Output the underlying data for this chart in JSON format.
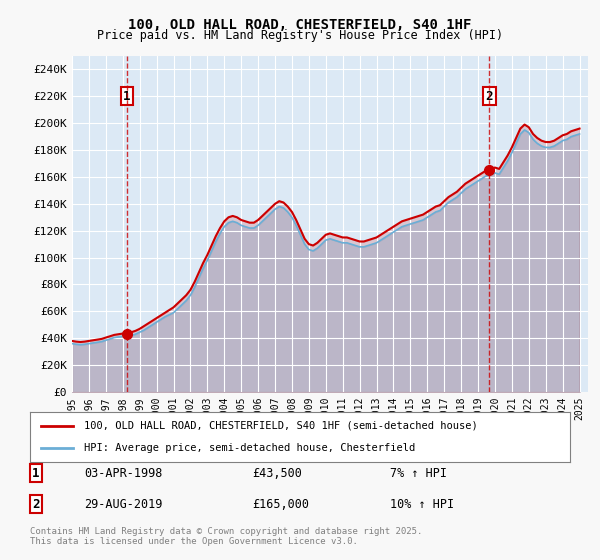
{
  "title_line1": "100, OLD HALL ROAD, CHESTERFIELD, S40 1HF",
  "title_line2": "Price paid vs. HM Land Registry's House Price Index (HPI)",
  "xlabel": "",
  "ylabel": "",
  "ylim": [
    0,
    250000
  ],
  "yticks": [
    0,
    20000,
    40000,
    60000,
    80000,
    100000,
    120000,
    140000,
    160000,
    180000,
    200000,
    220000,
    240000
  ],
  "ytick_labels": [
    "£0",
    "£20K",
    "£40K",
    "£60K",
    "£80K",
    "£100K",
    "£120K",
    "£140K",
    "£160K",
    "£180K",
    "£200K",
    "£220K",
    "£240K"
  ],
  "xlim_start": 1995.0,
  "xlim_end": 2025.5,
  "xticks": [
    1995,
    1996,
    1997,
    1998,
    1999,
    2000,
    2001,
    2002,
    2003,
    2004,
    2005,
    2006,
    2007,
    2008,
    2009,
    2010,
    2011,
    2012,
    2013,
    2014,
    2015,
    2016,
    2017,
    2018,
    2019,
    2020,
    2021,
    2022,
    2023,
    2024,
    2025
  ],
  "bg_color": "#dce9f5",
  "plot_bg_color": "#dce9f5",
  "grid_color": "#ffffff",
  "red_line_color": "#cc0000",
  "blue_line_color": "#6baed6",
  "marker1_year": 1998.25,
  "marker1_price": 43500,
  "marker2_year": 2019.67,
  "marker2_price": 165000,
  "legend_line1": "100, OLD HALL ROAD, CHESTERFIELD, S40 1HF (semi-detached house)",
  "legend_line2": "HPI: Average price, semi-detached house, Chesterfield",
  "annotation1_label": "1",
  "annotation1_date": "03-APR-1998",
  "annotation1_price": "£43,500",
  "annotation1_hpi": "7% ↑ HPI",
  "annotation2_label": "2",
  "annotation2_date": "29-AUG-2019",
  "annotation2_price": "£165,000",
  "annotation2_hpi": "10% ↑ HPI",
  "footer": "Contains HM Land Registry data © Crown copyright and database right 2025.\nThis data is licensed under the Open Government Licence v3.0.",
  "hpi_data_x": [
    1995.0,
    1995.25,
    1995.5,
    1995.75,
    1996.0,
    1996.25,
    1996.5,
    1996.75,
    1997.0,
    1997.25,
    1997.5,
    1997.75,
    1998.0,
    1998.25,
    1998.5,
    1998.75,
    1999.0,
    1999.25,
    1999.5,
    1999.75,
    2000.0,
    2000.25,
    2000.5,
    2000.75,
    2001.0,
    2001.25,
    2001.5,
    2001.75,
    2002.0,
    2002.25,
    2002.5,
    2002.75,
    2003.0,
    2003.25,
    2003.5,
    2003.75,
    2004.0,
    2004.25,
    2004.5,
    2004.75,
    2005.0,
    2005.25,
    2005.5,
    2005.75,
    2006.0,
    2006.25,
    2006.5,
    2006.75,
    2007.0,
    2007.25,
    2007.5,
    2007.75,
    2008.0,
    2008.25,
    2008.5,
    2008.75,
    2009.0,
    2009.25,
    2009.5,
    2009.75,
    2010.0,
    2010.25,
    2010.5,
    2010.75,
    2011.0,
    2011.25,
    2011.5,
    2011.75,
    2012.0,
    2012.25,
    2012.5,
    2012.75,
    2013.0,
    2013.25,
    2013.5,
    2013.75,
    2014.0,
    2014.25,
    2014.5,
    2014.75,
    2015.0,
    2015.25,
    2015.5,
    2015.75,
    2016.0,
    2016.25,
    2016.5,
    2016.75,
    2017.0,
    2017.25,
    2017.5,
    2017.75,
    2018.0,
    2018.25,
    2018.5,
    2018.75,
    2019.0,
    2019.25,
    2019.5,
    2019.75,
    2020.0,
    2020.25,
    2020.5,
    2020.75,
    2021.0,
    2021.25,
    2021.5,
    2021.75,
    2022.0,
    2022.25,
    2022.5,
    2022.75,
    2023.0,
    2023.25,
    2023.5,
    2023.75,
    2024.0,
    2024.25,
    2024.5,
    2024.75,
    2025.0
  ],
  "hpi_data_y": [
    36000,
    35500,
    35200,
    35500,
    36000,
    36500,
    37000,
    37500,
    38500,
    39500,
    40500,
    41000,
    41500,
    41000,
    42000,
    43000,
    44500,
    46000,
    48000,
    50000,
    52000,
    54000,
    56000,
    57500,
    59000,
    62000,
    65000,
    68000,
    72000,
    78000,
    85000,
    92000,
    98000,
    105000,
    112000,
    118000,
    123000,
    126000,
    127000,
    126000,
    124000,
    123000,
    122000,
    122000,
    124000,
    127000,
    130000,
    133000,
    136000,
    138000,
    137000,
    134000,
    130000,
    124000,
    117000,
    110000,
    106000,
    105000,
    107000,
    110000,
    113000,
    114000,
    113000,
    112000,
    111000,
    111000,
    110000,
    109000,
    108000,
    108000,
    109000,
    110000,
    111000,
    113000,
    115000,
    117000,
    119000,
    121000,
    123000,
    124000,
    125000,
    126000,
    127000,
    128000,
    130000,
    132000,
    134000,
    135000,
    138000,
    141000,
    143000,
    145000,
    148000,
    151000,
    153000,
    155000,
    157000,
    159000,
    161000,
    162000,
    163000,
    162000,
    167000,
    172000,
    178000,
    185000,
    192000,
    195000,
    193000,
    188000,
    185000,
    183000,
    182000,
    182000,
    183000,
    185000,
    187000,
    188000,
    190000,
    191000,
    192000
  ],
  "red_data_x": [
    1995.0,
    1995.25,
    1995.5,
    1995.75,
    1996.0,
    1996.25,
    1996.5,
    1996.75,
    1997.0,
    1997.25,
    1997.5,
    1997.75,
    1998.0,
    1998.25,
    1998.5,
    1998.75,
    1999.0,
    1999.25,
    1999.5,
    1999.75,
    2000.0,
    2000.25,
    2000.5,
    2000.75,
    2001.0,
    2001.25,
    2001.5,
    2001.75,
    2002.0,
    2002.25,
    2002.5,
    2002.75,
    2003.0,
    2003.25,
    2003.5,
    2003.75,
    2004.0,
    2004.25,
    2004.5,
    2004.75,
    2005.0,
    2005.25,
    2005.5,
    2005.75,
    2006.0,
    2006.25,
    2006.5,
    2006.75,
    2007.0,
    2007.25,
    2007.5,
    2007.75,
    2008.0,
    2008.25,
    2008.5,
    2008.75,
    2009.0,
    2009.25,
    2009.5,
    2009.75,
    2010.0,
    2010.25,
    2010.5,
    2010.75,
    2011.0,
    2011.25,
    2011.5,
    2011.75,
    2012.0,
    2012.25,
    2012.5,
    2012.75,
    2013.0,
    2013.25,
    2013.5,
    2013.75,
    2014.0,
    2014.25,
    2014.5,
    2014.75,
    2015.0,
    2015.25,
    2015.5,
    2015.75,
    2016.0,
    2016.25,
    2016.5,
    2016.75,
    2017.0,
    2017.25,
    2017.5,
    2017.75,
    2018.0,
    2018.25,
    2018.5,
    2018.75,
    2019.0,
    2019.25,
    2019.5,
    2019.75,
    2020.0,
    2020.25,
    2020.5,
    2020.75,
    2021.0,
    2021.25,
    2021.5,
    2021.75,
    2022.0,
    2022.25,
    2022.5,
    2022.75,
    2023.0,
    2023.25,
    2023.5,
    2023.75,
    2024.0,
    2024.25,
    2024.5,
    2024.75,
    2025.0
  ],
  "red_data_y": [
    38000,
    37500,
    37200,
    37500,
    38000,
    38500,
    39000,
    39500,
    40500,
    41500,
    42500,
    43000,
    43500,
    43500,
    44500,
    45500,
    47000,
    49000,
    51000,
    53000,
    55000,
    57000,
    59000,
    61000,
    63000,
    66000,
    69000,
    72000,
    76000,
    82000,
    89000,
    96000,
    102000,
    109000,
    116000,
    122000,
    127000,
    130000,
    131000,
    130000,
    128000,
    127000,
    126000,
    126000,
    128000,
    131000,
    134000,
    137000,
    140000,
    142000,
    141000,
    138000,
    134000,
    128000,
    121000,
    114000,
    110000,
    109000,
    111000,
    114000,
    117000,
    118000,
    117000,
    116000,
    115000,
    115000,
    114000,
    113000,
    112000,
    112000,
    113000,
    114000,
    115000,
    117000,
    119000,
    121000,
    123000,
    125000,
    127000,
    128000,
    129000,
    130000,
    131000,
    132000,
    134000,
    136000,
    138000,
    139000,
    142000,
    145000,
    147000,
    149000,
    152000,
    155000,
    157000,
    159000,
    161000,
    163000,
    165000,
    166000,
    167000,
    166000,
    171000,
    176000,
    182000,
    189000,
    196000,
    199000,
    197000,
    192000,
    189000,
    187000,
    186000,
    186000,
    187000,
    189000,
    191000,
    192000,
    194000,
    195000,
    196000
  ]
}
